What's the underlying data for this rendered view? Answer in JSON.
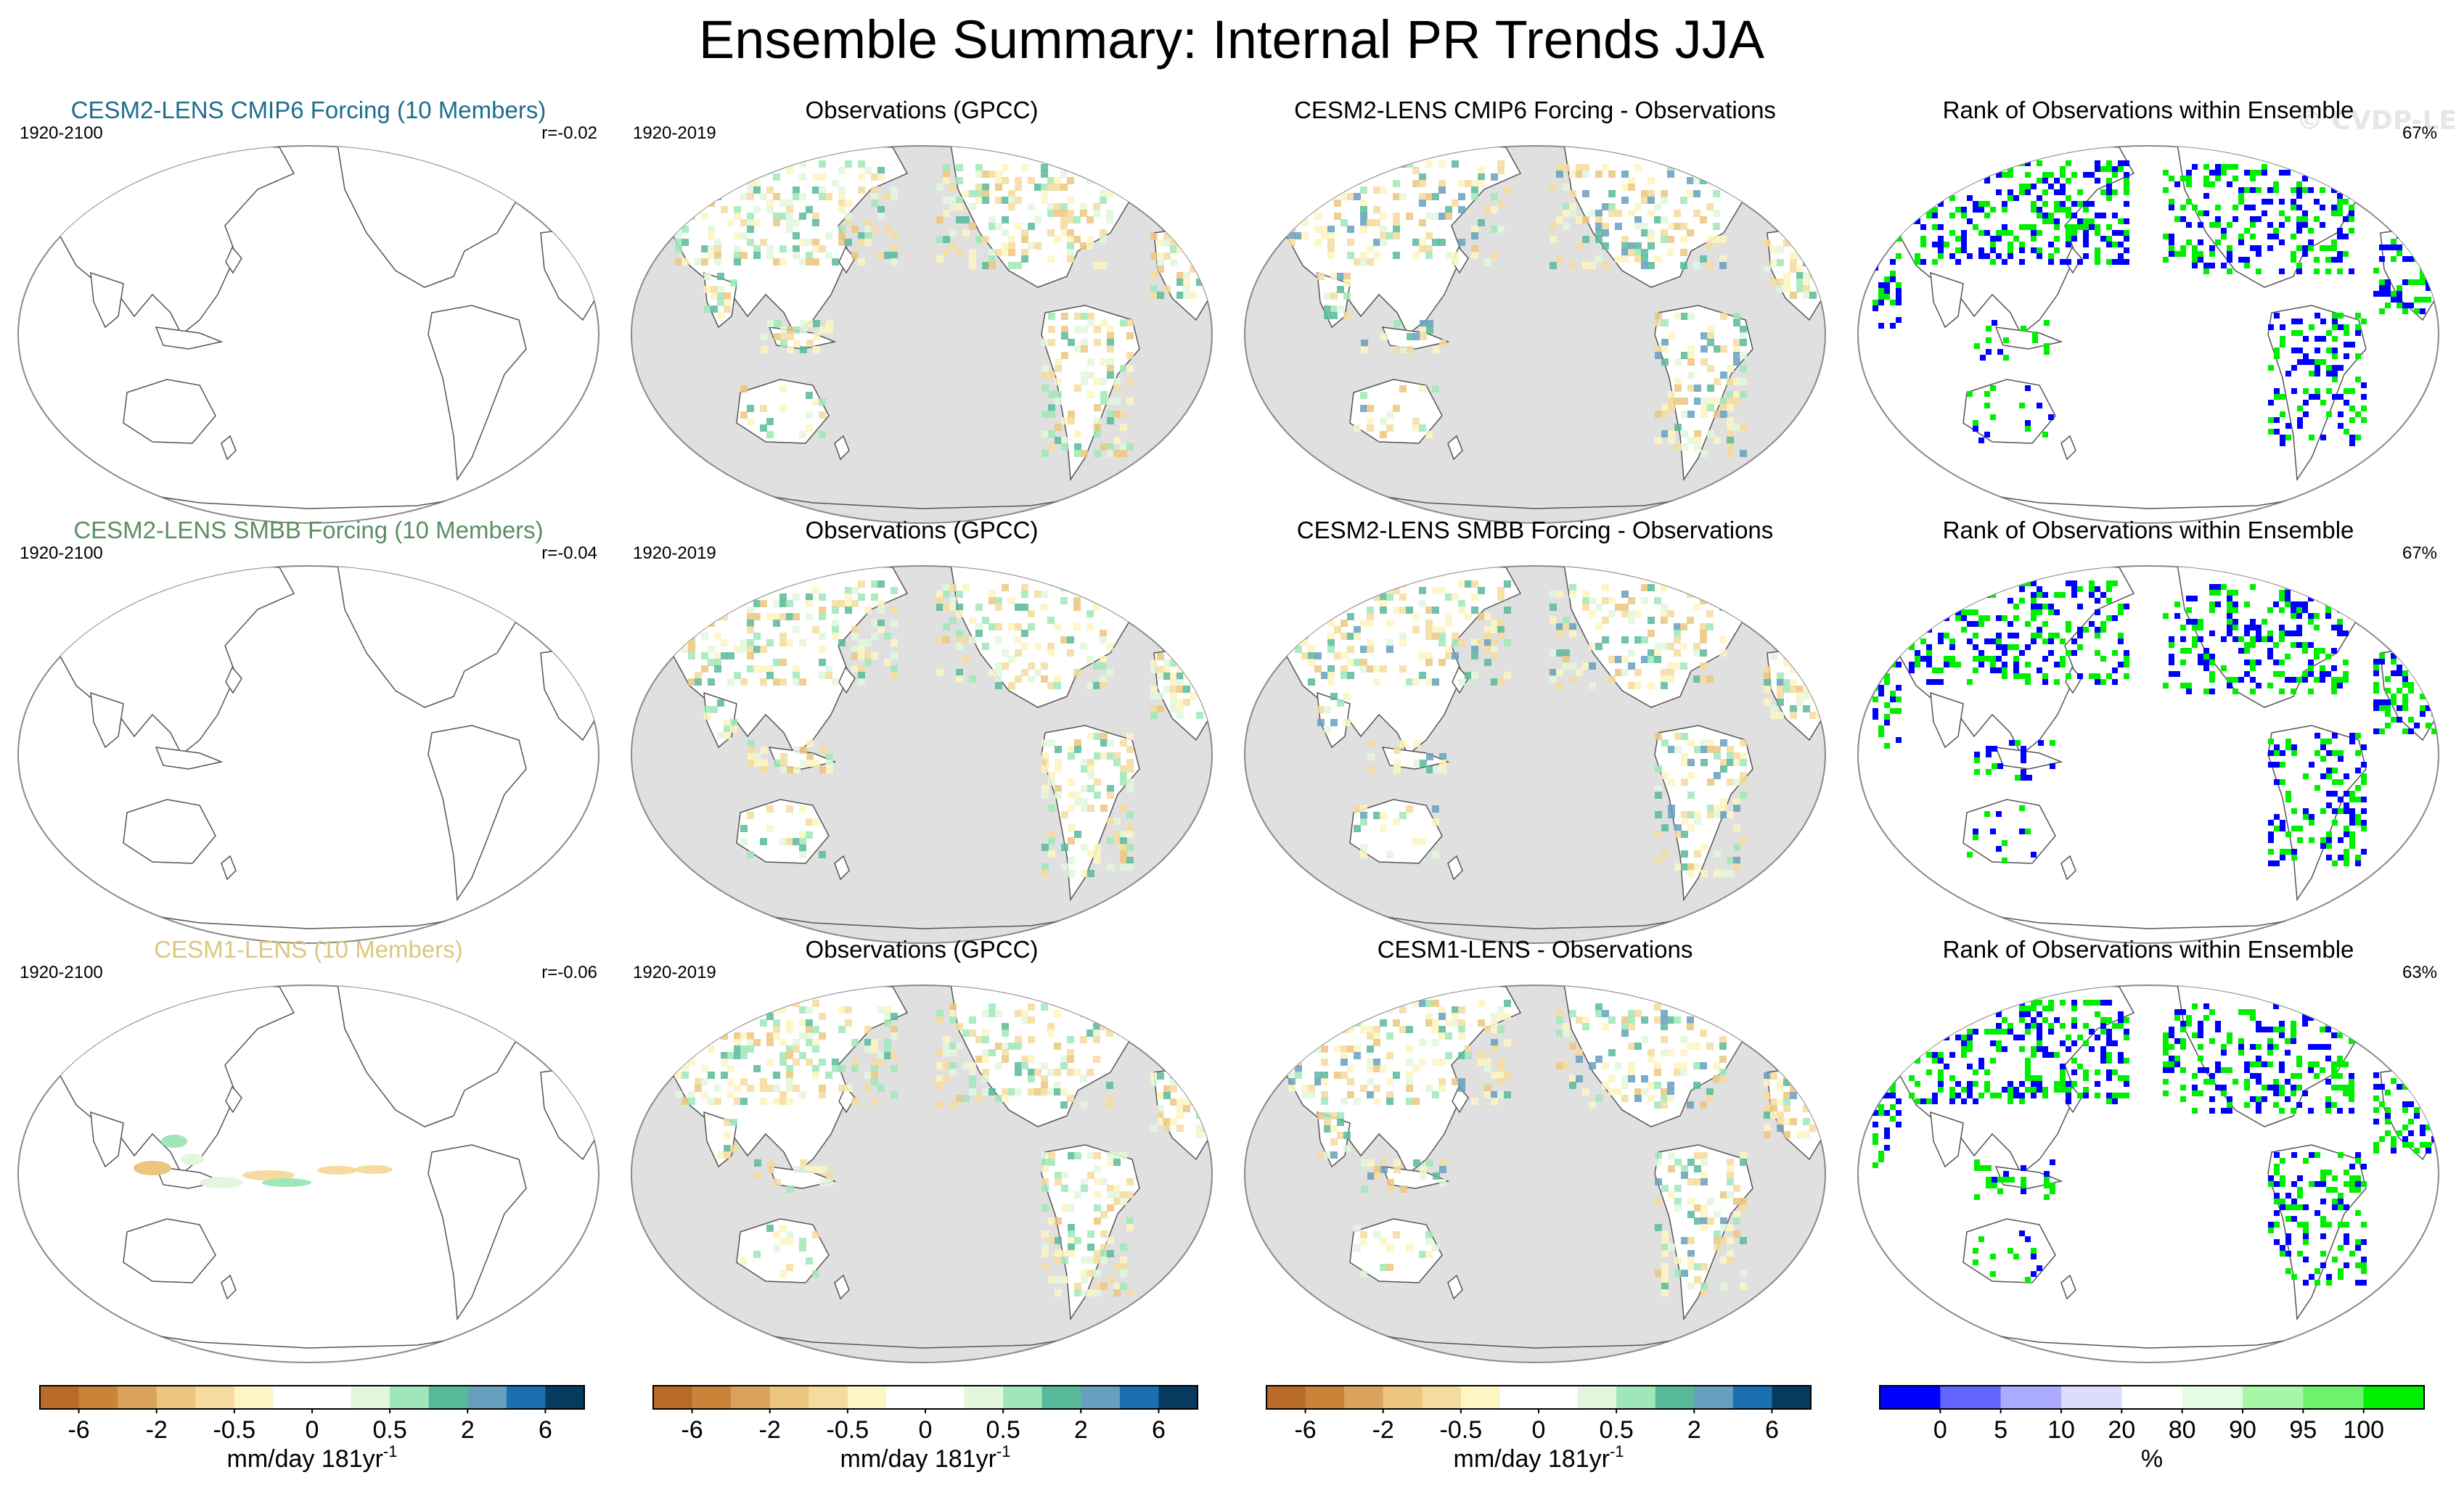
{
  "title": "Ensemble Summary: Internal PR Trends JJA",
  "watermark": "© CVDP-LE",
  "colors": {
    "ocean_gray": "#e0e0e0",
    "trend_palette": [
      "#b86b28",
      "#c98439",
      "#dba25d",
      "#ecc67e",
      "#f5db9d",
      "#fdf5c2",
      "#ffffff",
      "#ffffff",
      "#e2f7dc",
      "#9fe7b8",
      "#58b99a",
      "#66a0be",
      "#1a6fb0",
      "#073a5f"
    ],
    "rank_palette": [
      "#0000ff",
      "#6464ff",
      "#aaaaff",
      "#dcdcff",
      "#ffffff",
      "#e4fde4",
      "#a8f6a8",
      "#6cf26c",
      "#00ee00"
    ],
    "title_cmip6": "#1d6e8c",
    "title_smbb": "#5a8f63",
    "title_cesm1": "#ddc77b"
  },
  "chart_data": {
    "type": "map-panel-grid",
    "rows": [
      {
        "panels": [
          {
            "title": "CESM2-LENS CMIP6 Forcing (10 Members)",
            "title_color": "title_cmip6",
            "left": "1920-2100",
            "right": "r=-0.02",
            "kind": "model_cmip6"
          },
          {
            "title": "Observations (GPCC)",
            "left": "1920-2019",
            "right": "",
            "kind": "obs"
          },
          {
            "title": "CESM2-LENS CMIP6 Forcing - Observations",
            "left": "",
            "right": "",
            "kind": "diff"
          },
          {
            "title": "Rank of Observations within Ensemble",
            "left": "",
            "right": "67%",
            "kind": "rank"
          }
        ]
      },
      {
        "panels": [
          {
            "title": "CESM2-LENS SMBB Forcing (10 Members)",
            "title_color": "title_smbb",
            "left": "1920-2100",
            "right": "r=-0.04",
            "kind": "model_smbb"
          },
          {
            "title": "Observations (GPCC)",
            "left": "1920-2019",
            "right": "",
            "kind": "obs"
          },
          {
            "title": "CESM2-LENS SMBB Forcing - Observations",
            "left": "",
            "right": "",
            "kind": "diff"
          },
          {
            "title": "Rank of Observations within Ensemble",
            "left": "",
            "right": "67%",
            "kind": "rank"
          }
        ]
      },
      {
        "panels": [
          {
            "title": "CESM1-LENS (10 Members)",
            "title_color": "title_cesm1",
            "left": "1920-2100",
            "right": "r=-0.06",
            "kind": "model_cesm1"
          },
          {
            "title": "Observations (GPCC)",
            "left": "1920-2019",
            "right": "",
            "kind": "obs"
          },
          {
            "title": "CESM1-LENS - Observations",
            "left": "",
            "right": "",
            "kind": "diff"
          },
          {
            "title": "Rank of Observations within Ensemble",
            "left": "",
            "right": "63%",
            "kind": "rank"
          }
        ]
      }
    ],
    "colorbars": [
      {
        "palette": "trend_palette",
        "tick_labels": [
          "-6",
          "-2",
          "-0.5",
          "0",
          "0.5",
          "2",
          "6"
        ],
        "label": "mm/day 181yr",
        "label_sup": "-1"
      },
      {
        "palette": "trend_palette",
        "tick_labels": [
          "-6",
          "-2",
          "-0.5",
          "0",
          "0.5",
          "2",
          "6"
        ],
        "label": "mm/day 181yr",
        "label_sup": "-1"
      },
      {
        "palette": "trend_palette",
        "tick_labels": [
          "-6",
          "-2",
          "-0.5",
          "0",
          "0.5",
          "2",
          "6"
        ],
        "label": "mm/day 181yr",
        "label_sup": "-1"
      },
      {
        "palette": "rank_palette",
        "tick_labels": [
          "0",
          "5",
          "10",
          "20",
          "80",
          "90",
          "95",
          "100"
        ],
        "label": "%",
        "label_sup": ""
      }
    ]
  }
}
